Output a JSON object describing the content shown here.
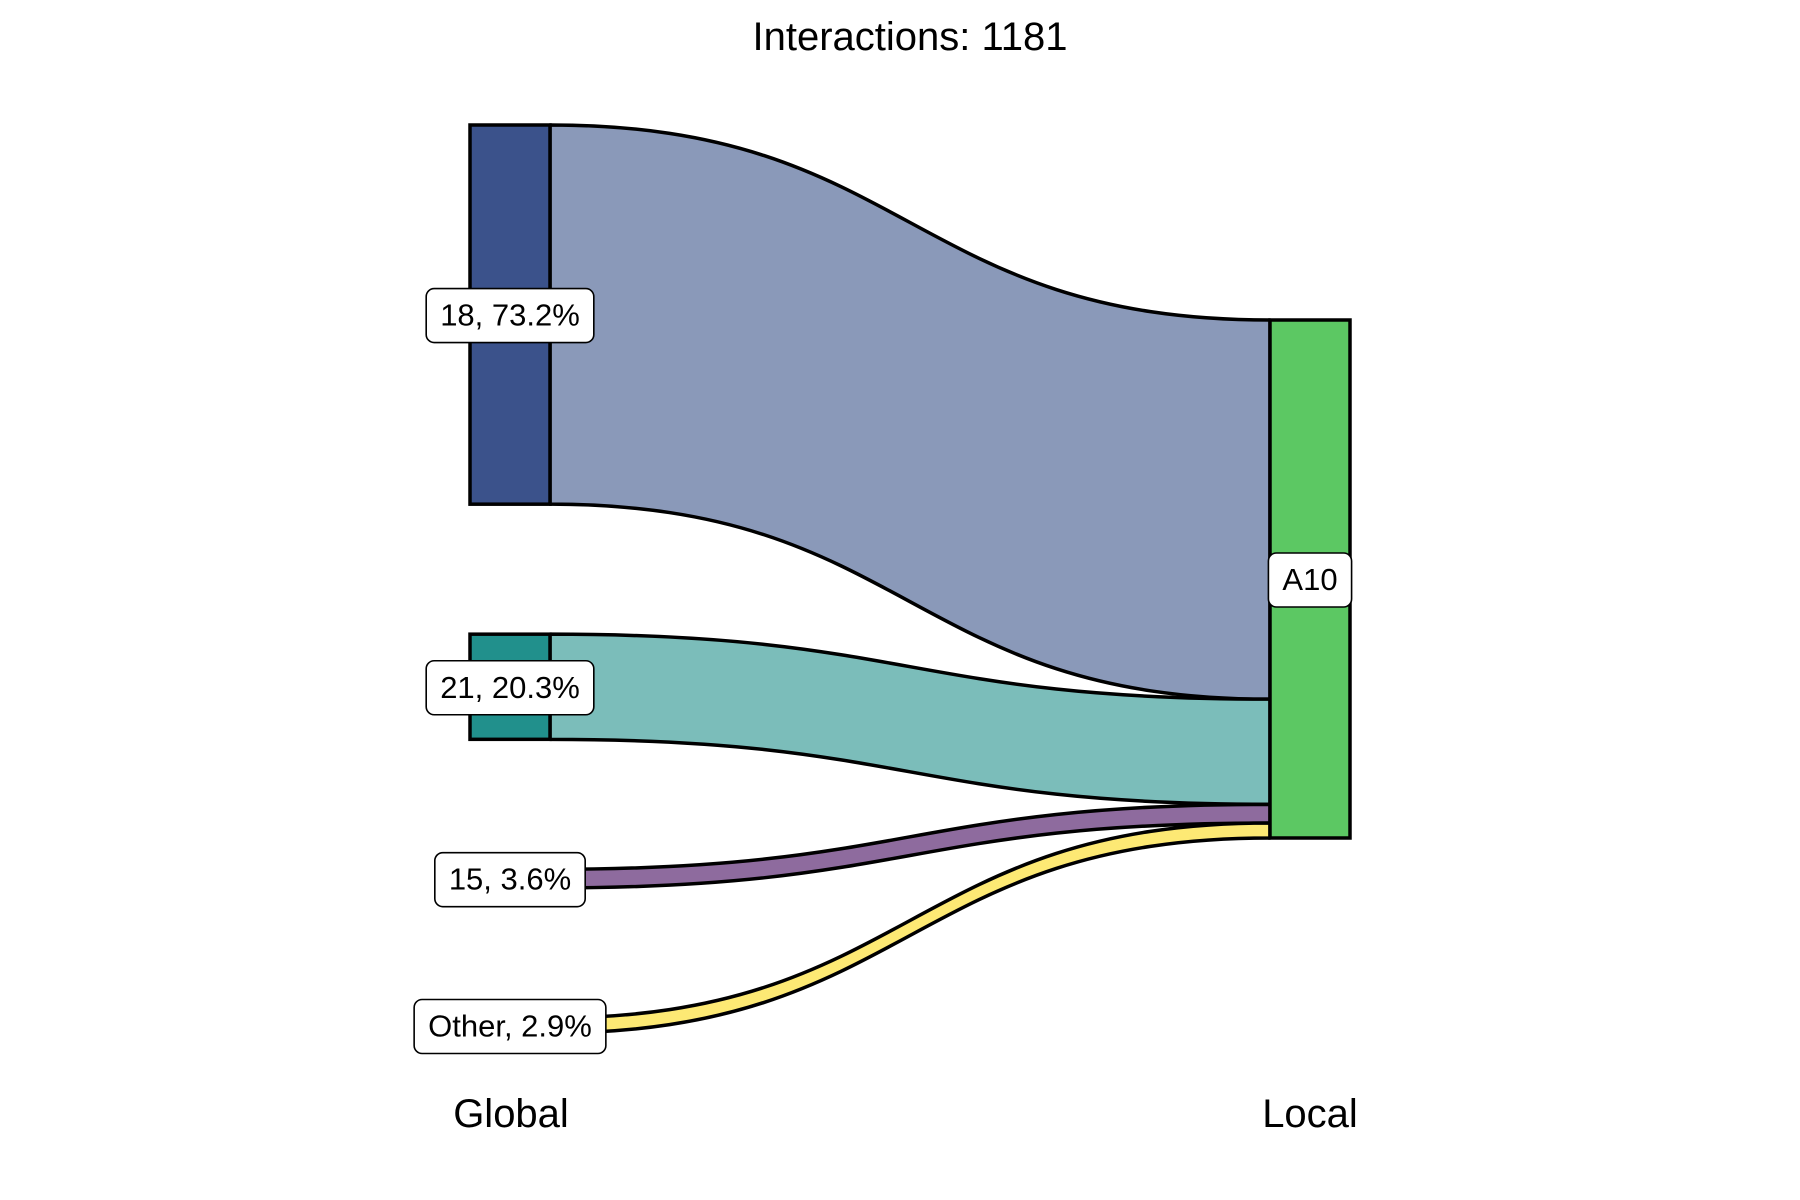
{
  "chart_data": {
    "type": "sankey",
    "title": "Interactions: 1181",
    "axes": [
      "Global",
      "Local"
    ],
    "source_nodes": [
      {
        "label": "18, 73.2%",
        "value": 73.2,
        "color": "#3B528B",
        "flow_color": "#8A99B9"
      },
      {
        "label": "21, 20.3%",
        "value": 20.3,
        "color": "#21908C",
        "flow_color": "#7BBDBA"
      },
      {
        "label": "15, 3.6%",
        "value": 3.6,
        "color": "#8E6B9E",
        "flow_color": "#8E6B9E"
      },
      {
        "label": "Other, 2.9%",
        "value": 2.9,
        "color": "#FDE974",
        "flow_color": "#FDE974"
      }
    ],
    "target_nodes": [
      {
        "label": "A10",
        "value": 100,
        "color": "#5CC863"
      }
    ],
    "flows": [
      {
        "source": "18, 73.2%",
        "target": "A10",
        "value": 73.2
      },
      {
        "source": "21, 20.3%",
        "target": "A10",
        "value": 20.3
      },
      {
        "source": "15, 3.6%",
        "target": "A10",
        "value": 3.6
      },
      {
        "source": "Other, 2.9%",
        "target": "A10",
        "value": 2.9
      }
    ]
  }
}
